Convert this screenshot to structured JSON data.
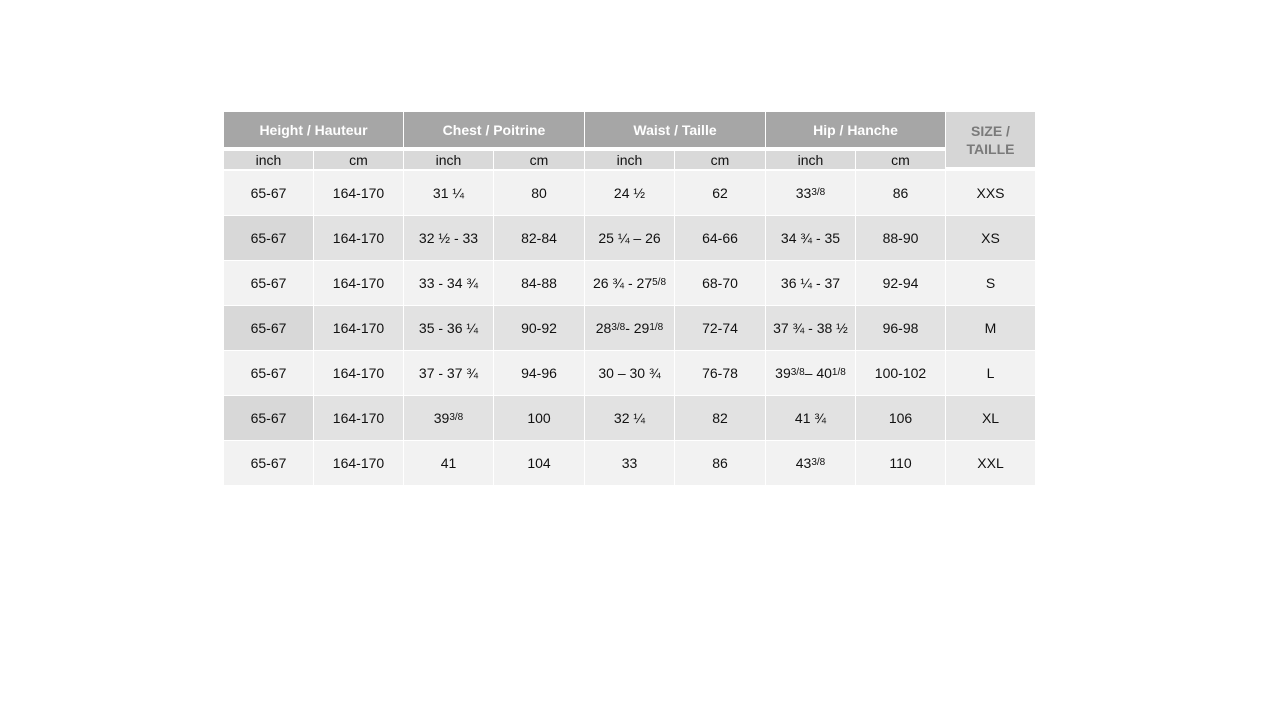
{
  "table": {
    "groups": [
      "Height / Hauteur",
      "Chest / Poitrine",
      "Waist / Taille",
      "Hip / Hanche"
    ],
    "size_header": "SIZE / TAILLE",
    "units": [
      "inch",
      "cm",
      "inch",
      "cm",
      "inch",
      "cm",
      "inch",
      "cm"
    ],
    "rows": [
      [
        "65-67",
        "164-170",
        "31 ¼",
        "80",
        "24 ½",
        "62",
        "33 3/8",
        "86",
        "XXS"
      ],
      [
        "65-67",
        "164-170",
        "32 ½ - 33",
        "82-84",
        "25 ¼ – 26",
        "64-66",
        "34 ¾  - 35",
        "88-90",
        "XS"
      ],
      [
        "65-67",
        "164-170",
        "33 - 34 ¾",
        "84-88",
        "26 ¾  - 27 5/8",
        "68-70",
        "36 ¼  - 37",
        "92-94",
        "S"
      ],
      [
        "65-67",
        "164-170",
        "35 - 36 ¼",
        "90-92",
        "28 3/8 - 29 1/8",
        "72-74",
        "37 ¾  -  38 ½",
        "96-98",
        "M"
      ],
      [
        "65-67",
        "164-170",
        "37 - 37 ¾",
        "94-96",
        "30 – 30 ¾",
        "76-78",
        "39 3/8 – 40 1/8",
        "100-102",
        "L"
      ],
      [
        "65-67",
        "164-170",
        "39 3/8",
        "100",
        "32 ¼",
        "82",
        "41 ¾",
        "106",
        "XL"
      ],
      [
        "65-67",
        "164-170",
        "41",
        "104",
        "33",
        "86",
        "43 3/8",
        "110",
        "XXL"
      ]
    ]
  },
  "colors": {
    "header": "#a6a6a6",
    "subheader": "#d9d9d9",
    "row_light": "#f2f2f2",
    "row_dark": "#e2e2e2"
  }
}
